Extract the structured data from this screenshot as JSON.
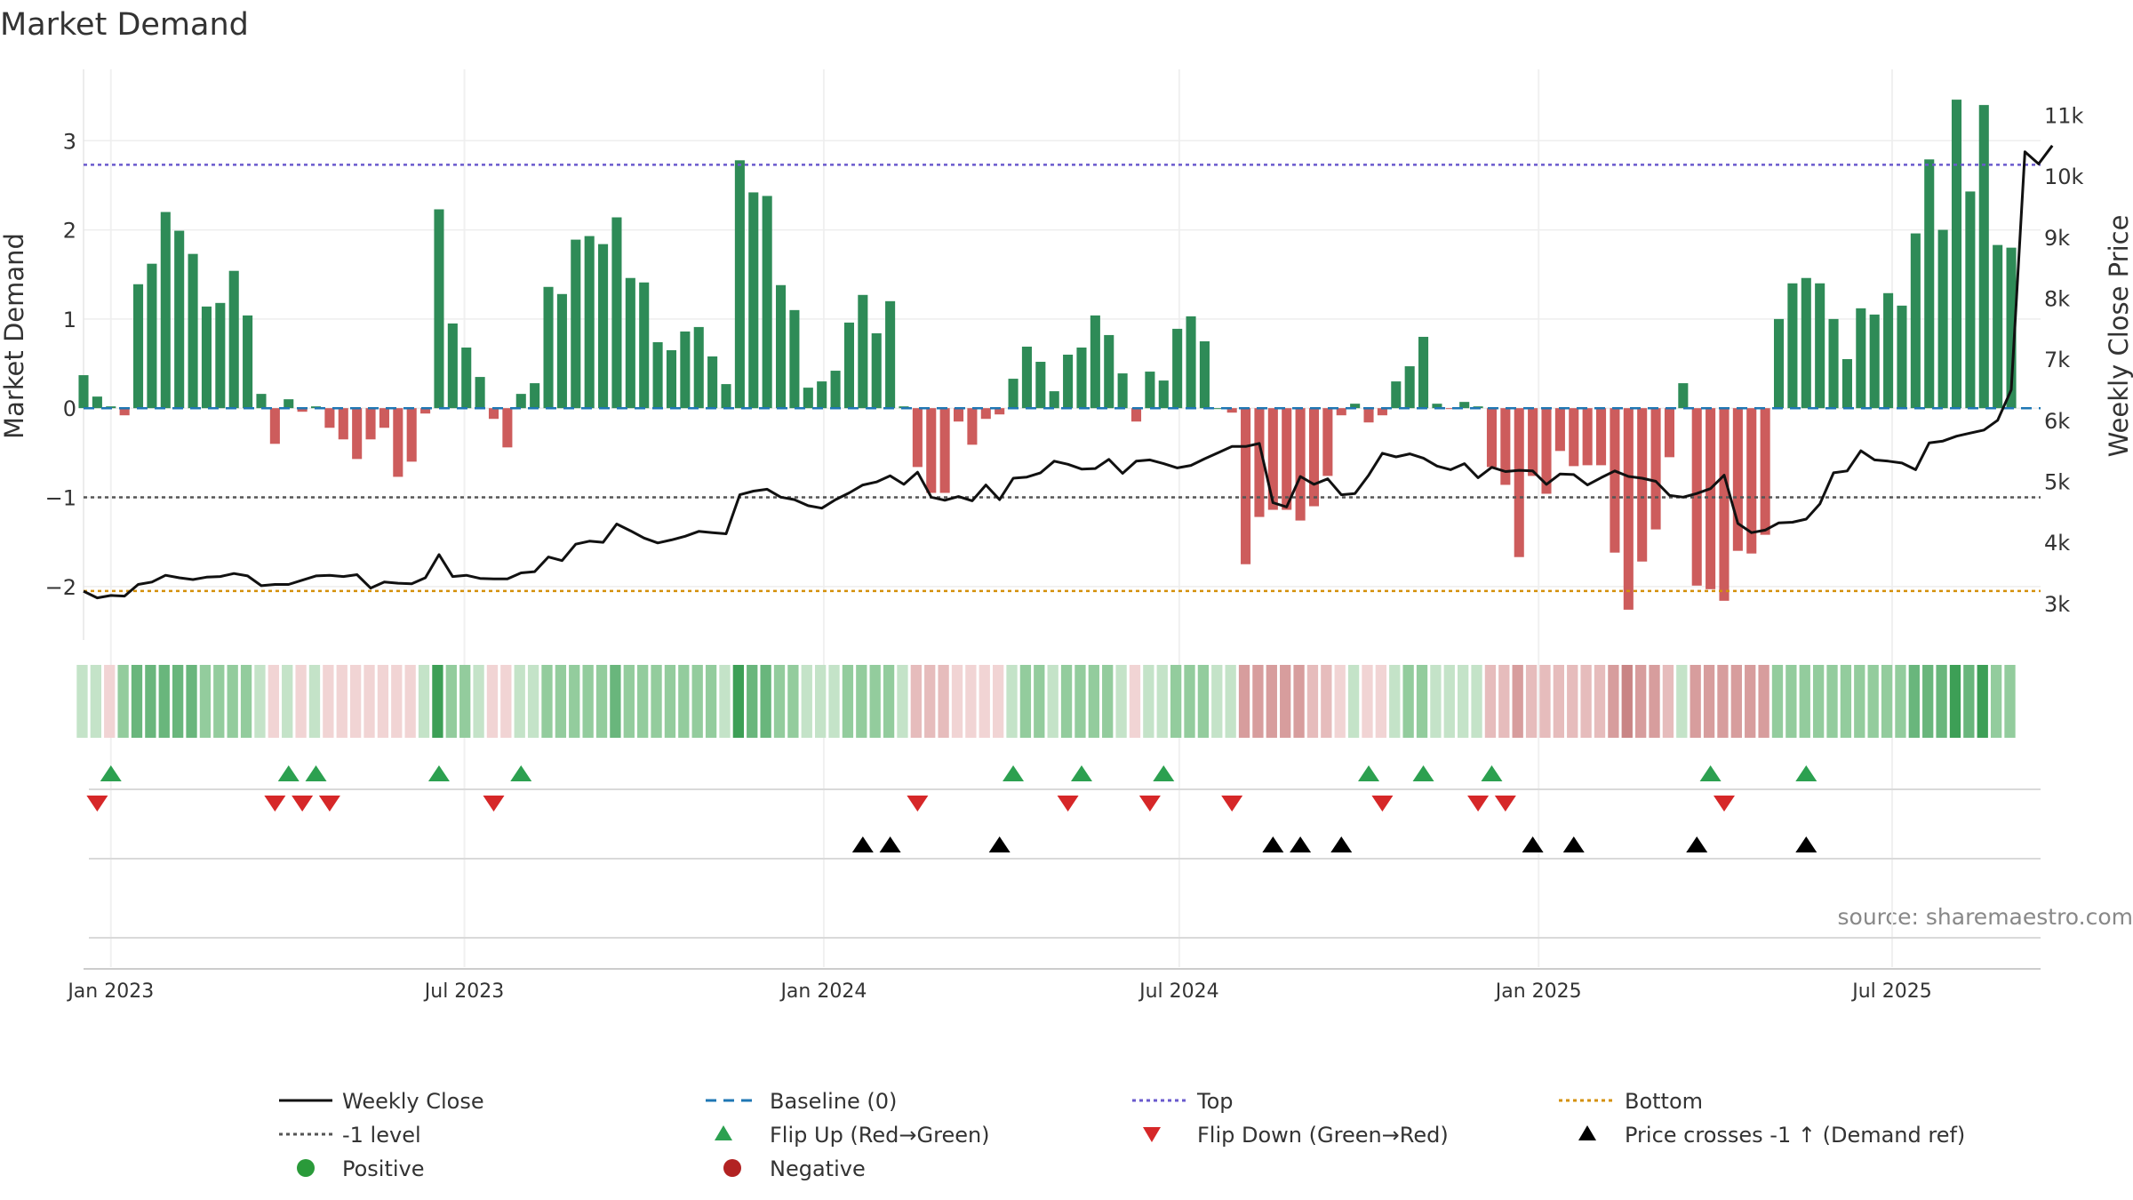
{
  "title": "Market Demand",
  "source": "source: sharemaestro.com",
  "chart_data": {
    "type": "bar+line",
    "title": "Market Demand",
    "ylabel_left": "Market Demand",
    "ylabel_right": "Weekly Close Price",
    "yticks_left": [
      {
        "v": 3,
        "t": "3"
      },
      {
        "v": 2,
        "t": "2"
      },
      {
        "v": 1,
        "t": "1"
      },
      {
        "v": 0,
        "t": "0"
      },
      {
        "v": -1,
        "t": "−1"
      },
      {
        "v": -2,
        "t": "−2"
      }
    ],
    "yticks_right": [
      {
        "v": 11000,
        "t": "11k"
      },
      {
        "v": 10000,
        "t": "10k"
      },
      {
        "v": 9000,
        "t": "9k"
      },
      {
        "v": 8000,
        "t": "8k"
      },
      {
        "v": 7000,
        "t": "7k"
      },
      {
        "v": 6000,
        "t": "6k"
      },
      {
        "v": 5000,
        "t": "5k"
      },
      {
        "v": 4000,
        "t": "4k"
      },
      {
        "v": 3000,
        "t": "3k"
      }
    ],
    "ylim_left": [
      -2.6,
      3.8
    ],
    "ylim_right": [
      2400,
      11750
    ],
    "x_start": "2022-12-18",
    "x_end": "2025-09-15",
    "xticks": [
      {
        "date": "2023-01-01",
        "label": "Jan 2023"
      },
      {
        "date": "2023-07-01",
        "label": "Jul 2023"
      },
      {
        "date": "2024-01-01",
        "label": "Jan 2024"
      },
      {
        "date": "2024-07-01",
        "label": "Jul 2024"
      },
      {
        "date": "2025-01-01",
        "label": "Jan 2025"
      },
      {
        "date": "2025-07-01",
        "label": "Jul 2025"
      }
    ],
    "first_week": "2022-12-18",
    "demand": [
      0.37,
      0.13,
      0.02,
      -0.08,
      1.39,
      1.62,
      2.2,
      1.99,
      1.73,
      1.14,
      1.18,
      1.54,
      1.04,
      0.16,
      -0.4,
      0.1,
      -0.04,
      0.02,
      -0.22,
      -0.35,
      -0.57,
      -0.35,
      -0.22,
      -0.77,
      -0.6,
      -0.06,
      2.23,
      0.95,
      0.68,
      0.35,
      -0.12,
      -0.44,
      0.16,
      0.28,
      1.36,
      1.28,
      1.89,
      1.93,
      1.84,
      2.14,
      1.46,
      1.41,
      0.74,
      0.65,
      0.86,
      0.91,
      0.58,
      0.27,
      2.78,
      2.42,
      2.38,
      1.38,
      1.1,
      0.23,
      0.3,
      0.42,
      0.96,
      1.27,
      0.84,
      1.2,
      0.02,
      -0.66,
      -0.95,
      -0.95,
      -0.15,
      -0.41,
      -0.12,
      -0.07,
      0.33,
      0.69,
      0.52,
      0.19,
      0.6,
      0.68,
      1.04,
      0.82,
      0.39,
      -0.15,
      0.41,
      0.31,
      0.89,
      1.03,
      0.75,
      0.0,
      -0.05,
      -1.75,
      -1.22,
      -1.14,
      -1.14,
      -1.26,
      -1.1,
      -0.76,
      -0.08,
      0.05,
      -0.16,
      -0.08,
      0.3,
      0.47,
      0.8,
      0.05,
      -0.01,
      0.07,
      0.02,
      -0.66,
      -0.86,
      -1.67,
      -0.76,
      -0.96,
      -0.48,
      -0.65,
      -0.64,
      -0.64,
      -1.62,
      -2.26,
      -1.72,
      -1.36,
      -0.55,
      0.28,
      -1.99,
      -2.03,
      -2.16,
      -1.6,
      -1.63,
      -1.42,
      1.0,
      1.4,
      1.46,
      1.4,
      1.0,
      0.55,
      1.12,
      1.05,
      1.29,
      1.15,
      1.96,
      2.79,
      2.0,
      3.46,
      2.43,
      3.4,
      1.83,
      1.8
    ],
    "price": [
      3200,
      3090,
      3130,
      3120,
      3310,
      3350,
      3460,
      3420,
      3390,
      3430,
      3440,
      3490,
      3450,
      3290,
      3310,
      3310,
      3380,
      3450,
      3460,
      3440,
      3470,
      3250,
      3350,
      3330,
      3320,
      3420,
      3800,
      3440,
      3460,
      3410,
      3400,
      3400,
      3500,
      3520,
      3760,
      3700,
      3970,
      4020,
      4000,
      4300,
      4190,
      4070,
      3990,
      4040,
      4100,
      4180,
      4160,
      4140,
      4780,
      4840,
      4870,
      4740,
      4700,
      4600,
      4560,
      4700,
      4810,
      4940,
      4990,
      5090,
      4950,
      5150,
      4740,
      4690,
      4750,
      4680,
      4940,
      4700,
      5050,
      5070,
      5140,
      5330,
      5280,
      5200,
      5210,
      5360,
      5130,
      5330,
      5350,
      5290,
      5220,
      5260,
      5370,
      5470,
      5570,
      5570,
      5620,
      4650,
      4580,
      5080,
      4950,
      5040,
      4780,
      4800,
      5100,
      5460,
      5400,
      5450,
      5380,
      5250,
      5190,
      5290,
      5060,
      5230,
      5160,
      5180,
      5170,
      4950,
      5120,
      5110,
      4940,
      5060,
      5170,
      5080,
      5050,
      5000,
      4770,
      4740,
      4800,
      4880,
      5100,
      4310,
      4160,
      4200,
      4320,
      4330,
      4380,
      4630,
      5140,
      5170,
      5500,
      5350,
      5330,
      5300,
      5190,
      5630,
      5660,
      5740,
      5790,
      5840,
      6000,
      6500,
      10400,
      10200,
      10500
    ],
    "tiles": [
      1,
      1,
      -1,
      2,
      3,
      3,
      3,
      3,
      3,
      2,
      2,
      2,
      2,
      1,
      -1,
      1,
      -1,
      1,
      -1,
      -1,
      -1,
      -1,
      -1,
      -1,
      -1,
      1,
      4,
      2,
      2,
      1,
      -1,
      -1,
      1,
      1,
      2,
      2,
      2,
      2,
      2,
      3,
      2,
      2,
      2,
      2,
      2,
      2,
      2,
      1,
      4,
      3,
      3,
      2,
      2,
      1,
      1,
      1,
      2,
      2,
      2,
      2,
      1,
      -2,
      -2,
      -2,
      -1,
      -1,
      -1,
      -1,
      1,
      2,
      2,
      1,
      2,
      2,
      2,
      2,
      1,
      -1,
      1,
      1,
      2,
      2,
      2,
      1,
      1,
      -3,
      -3,
      -3,
      -3,
      -3,
      -2,
      -2,
      -1,
      1,
      -1,
      -1,
      1,
      2,
      2,
      1,
      1,
      1,
      1,
      -2,
      -2,
      -3,
      -2,
      -2,
      -2,
      -2,
      -2,
      -2,
      -3,
      -4,
      -3,
      -3,
      -2,
      1,
      -3,
      -3,
      -3,
      -3,
      -3,
      -3,
      2,
      2,
      2,
      2,
      2,
      2,
      2,
      2,
      2,
      2,
      3,
      3,
      3,
      4,
      3,
      4,
      2,
      2
    ],
    "flip_up_weeks": [
      2,
      15,
      17,
      26,
      32,
      68,
      73,
      79,
      94,
      98,
      103,
      119,
      126
    ],
    "flip_down_weeks": [
      1,
      14,
      16,
      18,
      30,
      61,
      72,
      78,
      84,
      95,
      102,
      104,
      120
    ],
    "price_cross_weeks": [
      57,
      59,
      67,
      87,
      89,
      92,
      106,
      109,
      118,
      126
    ],
    "lines": {
      "top": 2.73,
      "bottom": -2.05,
      "minus1": -1,
      "baseline": 0
    },
    "colors": {
      "pos": "#2e8b57",
      "neg": "#cd5c5c",
      "price": "#111111",
      "top": "#6a5acd",
      "bottom": "#d4900a",
      "minus1": "#555555",
      "baseline": "#1f77b4",
      "flip_up": "#2ca050",
      "flip_down": "#d62728",
      "cross": "#000000",
      "positive_dot": "#2a9a3a",
      "negative_dot": "#b22222"
    }
  },
  "legend": [
    {
      "label": "Weekly Close",
      "icon": "solid-line",
      "color": "#111111"
    },
    {
      "label": "Baseline (0)",
      "icon": "dashed-line",
      "color": "#1f77b4"
    },
    {
      "label": "Top",
      "icon": "dotted-line",
      "color": "#6a5acd"
    },
    {
      "label": "Bottom",
      "icon": "dotted-line",
      "color": "#d4900a"
    },
    {
      "label": "-1 level",
      "icon": "dotted-line",
      "color": "#555555"
    },
    {
      "label": "Flip Up (Red→Green)",
      "icon": "triangle-up",
      "color": "#2ca050"
    },
    {
      "label": "Flip Down (Green→Red)",
      "icon": "triangle-down",
      "color": "#d62728"
    },
    {
      "label": "Price crosses -1 ↑ (Demand ref)",
      "icon": "triangle-up",
      "color": "#000000"
    },
    {
      "label": "Positive",
      "icon": "circle",
      "color": "#2a9a3a"
    },
    {
      "label": "Negative",
      "icon": "circle",
      "color": "#b22222"
    }
  ]
}
